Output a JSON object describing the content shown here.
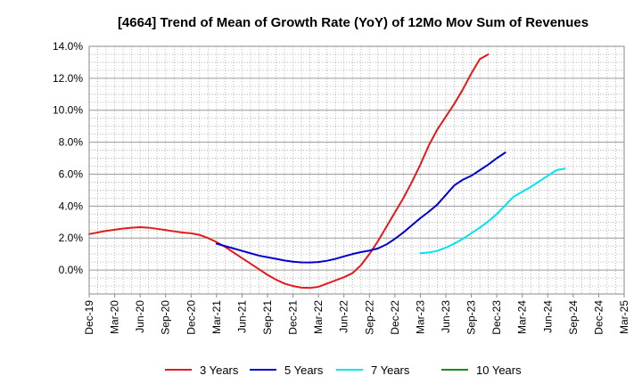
{
  "chart_data": {
    "type": "line",
    "title": "[4664]  Trend of Mean of Growth Rate (YoY) of 12Mo Mov Sum of Revenues",
    "xlabel": "",
    "ylabel": "",
    "ylim": [
      -1.5,
      14.0
    ],
    "yticks": [
      14.0,
      12.0,
      10.0,
      8.0,
      6.0,
      4.0,
      2.0,
      0.0
    ],
    "ytick_labels": [
      "14.0%",
      "12.0%",
      "10.0%",
      "8.0%",
      "6.0%",
      "4.0%",
      "2.0%",
      "0.0%"
    ],
    "xtick_labels": [
      "Dec-19",
      "Mar-20",
      "Jun-20",
      "Sep-20",
      "Dec-20",
      "Mar-21",
      "Jun-21",
      "Sep-21",
      "Dec-21",
      "Mar-22",
      "Jun-22",
      "Sep-22",
      "Dec-22",
      "Mar-23",
      "Jun-23",
      "Sep-23",
      "Dec-23",
      "Mar-24",
      "Jun-24",
      "Sep-24",
      "Dec-24",
      "Mar-25"
    ],
    "grid": true,
    "legend_position": "bottom",
    "series": [
      {
        "name": "3 Years",
        "color": "#e31a1c",
        "start_index": 0,
        "values": [
          2.25,
          2.35,
          2.45,
          2.52,
          2.6,
          2.65,
          2.68,
          2.65,
          2.58,
          2.5,
          2.42,
          2.35,
          2.3,
          2.2,
          2.0,
          1.75,
          1.45,
          1.1,
          0.75,
          0.4,
          0.05,
          -0.3,
          -0.6,
          -0.85,
          -1.0,
          -1.1,
          -1.12,
          -1.05,
          -0.85,
          -0.65,
          -0.45,
          -0.2,
          0.3,
          1.0,
          1.8,
          2.7,
          3.6,
          4.5,
          5.5,
          6.6,
          7.8,
          8.8,
          9.6,
          10.4,
          11.3,
          12.3,
          13.2,
          13.5
        ]
      },
      {
        "name": "5 Years",
        "color": "#0000cd",
        "start_index": 15,
        "values": [
          1.65,
          1.5,
          1.35,
          1.2,
          1.05,
          0.9,
          0.8,
          0.7,
          0.6,
          0.52,
          0.48,
          0.47,
          0.5,
          0.58,
          0.7,
          0.85,
          1.0,
          1.12,
          1.22,
          1.35,
          1.6,
          1.95,
          2.35,
          2.8,
          3.25,
          3.65,
          4.1,
          4.7,
          5.3,
          5.65,
          5.9,
          6.25,
          6.6,
          7.0,
          7.35
        ]
      },
      {
        "name": "7 Years",
        "color": "#00e5ee",
        "start_index": 39,
        "values": [
          1.05,
          1.1,
          1.2,
          1.4,
          1.65,
          1.95,
          2.3,
          2.65,
          3.05,
          3.5,
          4.05,
          4.6,
          4.9,
          5.2,
          5.55,
          5.9,
          6.25,
          6.35
        ]
      },
      {
        "name": "10 Years",
        "color": "#1a8a1a",
        "start_index": 0,
        "values": []
      }
    ]
  }
}
